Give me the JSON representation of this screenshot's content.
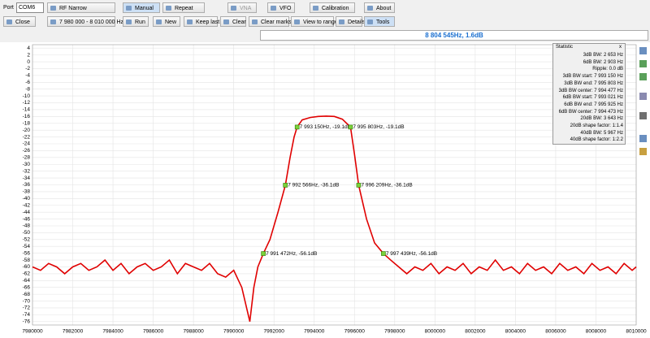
{
  "toolbar": {
    "port_label": "Port",
    "port": "COM6",
    "rf_narrow": "RF Narrow",
    "close": "Close",
    "range": "7 980 000 - 8 010 000 Hz",
    "manual": "Manual",
    "repeat": "Repeat",
    "vna": "VNA",
    "vfo": "VFO",
    "calibration": "Calibration",
    "about": "About",
    "run": "Run",
    "new": "New",
    "keep_last": "Keep last",
    "clear": "Clear",
    "clear_marks": "Clear marks",
    "view_to_range": "View to range",
    "details": "Details",
    "tools": "Tools"
  },
  "status": "8 804 545Hz, 1.6dB",
  "statistic": {
    "title": "Statistic",
    "close": "x",
    "lines": [
      "3dB BW: 2 653 Hz",
      "6dB BW: 2 903 Hz",
      "Ripple: 0.0 dB",
      "3dB BW start: 7 993 150 Hz",
      "3dB BW end: 7 995 803 Hz",
      "3dB BW center: 7 994 477 Hz",
      "6dB BW start: 7 993 021 Hz",
      "6dB BW end: 7 995 925 Hz",
      "6dB BW center: 7 994 473 Hz",
      "20dB BW: 3 643 Hz",
      "20dB shape factor: 1:1.4",
      "40dB BW: 5 967 Hz",
      "40dB shape factor: 1:2.2"
    ]
  },
  "chart_data": {
    "type": "line",
    "grid": true,
    "xlim": [
      7980000,
      8010000
    ],
    "ylim": [
      -77,
      5
    ],
    "xticks": [
      7980000,
      7982000,
      7984000,
      7986000,
      7988000,
      7990000,
      7992000,
      7994000,
      7996000,
      7998000,
      8000000,
      8002000,
      8004000,
      8006000,
      8008000,
      8010000
    ],
    "yticks": [
      4,
      2,
      0,
      -2,
      -4,
      -6,
      -8,
      -10,
      -12,
      -14,
      -16,
      -18,
      -20,
      -22,
      -24,
      -26,
      -28,
      -30,
      -32,
      -34,
      -36,
      -38,
      -40,
      -42,
      -44,
      -46,
      -48,
      -50,
      -52,
      -54,
      -56,
      -58,
      -60,
      -62,
      -64,
      -66,
      -68,
      -70,
      -72,
      -74,
      -76
    ],
    "series": [
      {
        "color": "#e00000",
        "x": [
          7980000,
          7980400,
          7980800,
          7981200,
          7981600,
          7982000,
          7982400,
          7982800,
          7983200,
          7983600,
          7984000,
          7984400,
          7984800,
          7985200,
          7985600,
          7986000,
          7986400,
          7986800,
          7987200,
          7987600,
          7988000,
          7988400,
          7988800,
          7989200,
          7989600,
          7990000,
          7990400,
          7990800,
          7991000,
          7991200,
          7991472,
          7991800,
          7992200,
          7992566,
          7992800,
          7993000,
          7993150,
          7993400,
          7993800,
          7994200,
          7994600,
          7995000,
          7995400,
          7995803,
          7996000,
          7996209,
          7996600,
          7997000,
          7997439,
          7997800,
          7998200,
          7998600,
          7999000,
          7999400,
          7999800,
          8000200,
          8000600,
          8001000,
          8001400,
          8001800,
          8002200,
          8002600,
          8003000,
          8003400,
          8003800,
          8004200,
          8004600,
          8005000,
          8005400,
          8005800,
          8006200,
          8006600,
          8007000,
          8007400,
          8007800,
          8008200,
          8008600,
          8009000,
          8009400,
          8009800,
          8010000
        ],
        "values": [
          -60,
          -61,
          -59,
          -60,
          -62,
          -60,
          -59,
          -61,
          -60,
          -58,
          -61,
          -59,
          -62,
          -60,
          -59,
          -61,
          -60,
          -58,
          -62,
          -59,
          -60,
          -61,
          -59,
          -62,
          -63,
          -61,
          -66,
          -76,
          -66,
          -60,
          -56.1,
          -52,
          -44,
          -36.1,
          -28,
          -22,
          -19.1,
          -17,
          -16.3,
          -16,
          -15.9,
          -16,
          -16.8,
          -19.1,
          -27,
          -36.1,
          -46,
          -53,
          -56.1,
          -58,
          -60,
          -62,
          -60,
          -61,
          -59,
          -62,
          -60,
          -61,
          -59,
          -62,
          -60,
          -61,
          -58,
          -61,
          -60,
          -62,
          -59,
          -61,
          -60,
          -62,
          -59,
          -61,
          -60,
          -62,
          -59,
          -61,
          -60,
          -62,
          -59,
          -61,
          -60
        ]
      }
    ],
    "annotations": [
      {
        "x": 7993150,
        "y": -19.1,
        "label": "7 993 150Hz, -19.1dB"
      },
      {
        "x": 7995803,
        "y": -19.1,
        "label": "7 995 803Hz, -19.1dB"
      },
      {
        "x": 7992566,
        "y": -36.1,
        "label": "7 992 566Hz, -36.1dB"
      },
      {
        "x": 7996209,
        "y": -36.1,
        "label": "7 996 209Hz, -36.1dB"
      },
      {
        "x": 7991472,
        "y": -56.1,
        "label": "7 991 472Hz, -56.1dB"
      },
      {
        "x": 7997439,
        "y": -56.1,
        "label": "7 997 439Hz, -56.1dB"
      }
    ]
  }
}
